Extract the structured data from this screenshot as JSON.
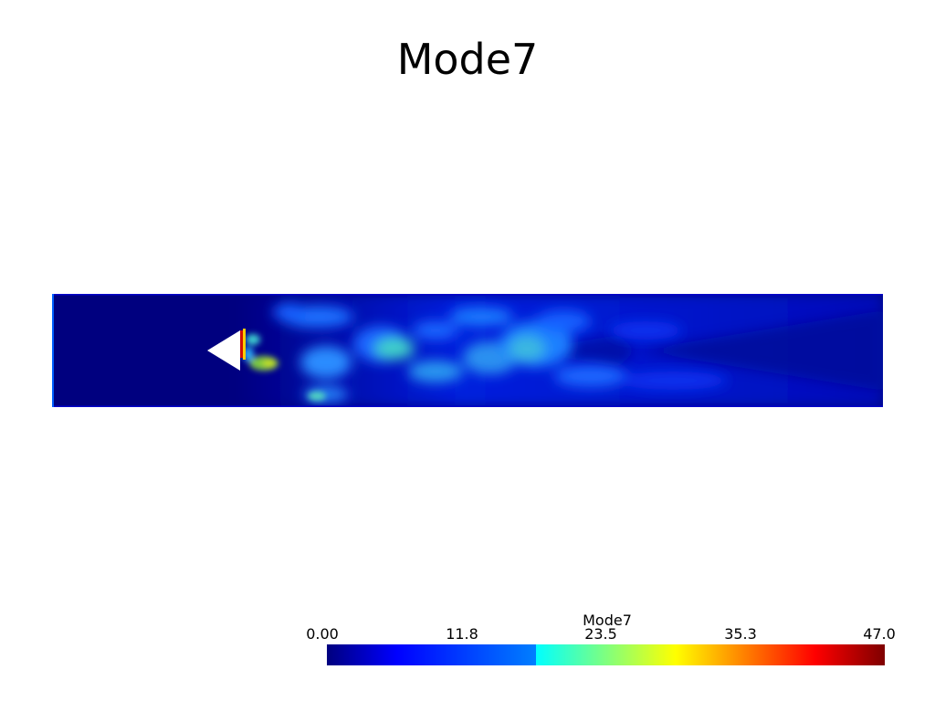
{
  "title": "Mode7",
  "colorbar": {
    "title": "Mode7",
    "ticks": [
      "0.00",
      "11.8",
      "23.5",
      "35.3",
      "47.0"
    ],
    "min": 0.0,
    "max": 47.0,
    "colormap": "jet"
  },
  "colors": {
    "background": "#ffffff",
    "low": "#00007f",
    "high": "#7f0000",
    "obstacle": "#ffffff"
  }
}
